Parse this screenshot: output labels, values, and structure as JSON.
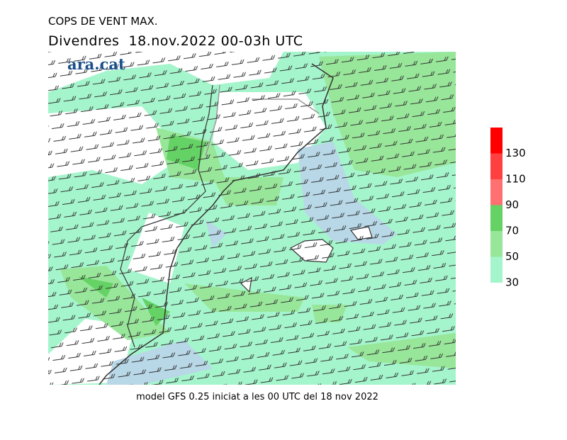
{
  "title": "COPS DE VENT MAX.",
  "subtitle": "Divendres  18.nov.2022 00-03h UTC",
  "logo": "ara.cat",
  "footer": "model GFS 0.25 iniciat a les 00 UTC del 18 nov 2022",
  "legend": {
    "levels": [
      30,
      50,
      70,
      90,
      110,
      130
    ],
    "colors": [
      "#a4f5cc",
      "#98e699",
      "#64d264",
      "#ff7070",
      "#ff4040",
      "#ff0000"
    ]
  }
}
